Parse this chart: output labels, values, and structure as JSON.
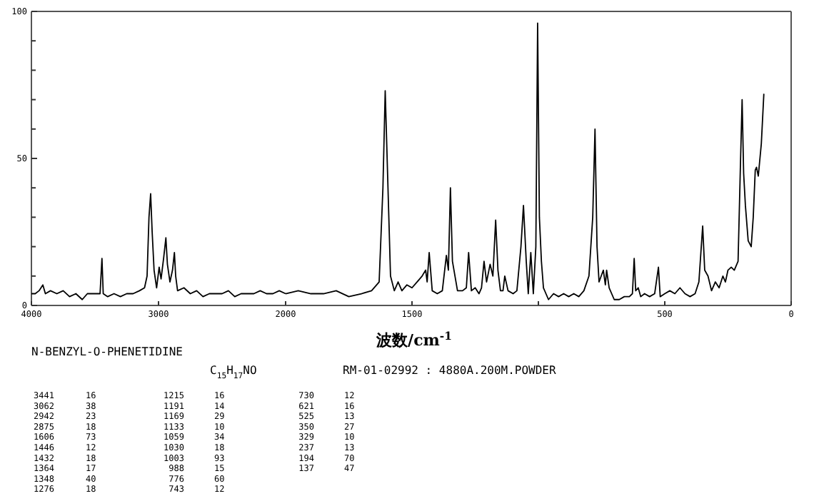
{
  "chart_data": [
    {
      "type": "line",
      "title": "N-BENZYL-O-PHENETIDINE",
      "xlabel": "波数/cm$^{-1}$",
      "annotations": [
        "C$_{15}$H$_{17}$NO",
        "RM-01-02992 : 4880A.200M.POWDER",
        "3441 16",
        "3062 38",
        "2942 23",
        "2875 18",
        "1606 73",
        "1446 12",
        "1432 18",
        "1364 17",
        "1348 40",
        "1276 18",
        "1215 16",
        "1191 14",
        "1169 29",
        "1133 10",
        "1059 34",
        "1030 18",
        "1003 93",
        "988 15",
        "776 60",
        "743 12",
        "730 12",
        "621 16",
        "525 13",
        "350 27",
        "329 10",
        "237 13",
        "194 70",
        "137 47"
      ],
      "x": [
        4000,
        3970,
        3940,
        3910,
        3890,
        3850,
        3800,
        3750,
        3700,
        3650,
        3600,
        3560,
        3500,
        3460,
        3445,
        3435,
        3400,
        3350,
        3300,
        3250,
        3200,
        3150,
        3110,
        3090,
        3075,
        3062,
        3050,
        3035,
        3015,
        2995,
        2980,
        2960,
        2942,
        2930,
        2910,
        2890,
        2875,
        2865,
        2850,
        2800,
        2750,
        2700,
        2650,
        2600,
        2550,
        2500,
        2450,
        2400,
        2350,
        2300,
        2250,
        2200,
        2150,
        2100,
        2050,
        2000
      ],
      "series": [
        {
          "color": "#000000",
          "values": [
            4,
            4,
            5,
            7,
            4,
            5,
            4,
            5,
            3,
            4,
            2,
            4,
            4,
            4,
            16,
            4,
            3,
            4,
            3,
            4,
            4,
            5,
            6,
            10,
            30,
            38,
            25,
            12,
            6,
            13,
            9,
            16,
            23,
            14,
            8,
            12,
            18,
            10,
            5,
            6,
            4,
            5,
            3,
            4,
            4,
            4,
            5,
            3,
            4,
            4,
            4,
            5,
            4,
            4,
            5,
            4
          ]
        }
      ],
      "xlim": [
        4000,
        2000
      ],
      "xticks": [
        4000,
        3000,
        2000
      ],
      "ylim": [
        0,
        100
      ],
      "yticks": [
        0,
        {
          "value": 10,
          "label": null
        },
        {
          "value": 20,
          "label": null
        },
        {
          "value": 30,
          "label": null
        },
        {
          "value": 40,
          "label": null
        },
        50,
        {
          "value": 60,
          "label": null
        },
        {
          "value": 70,
          "label": null
        },
        {
          "value": 80,
          "label": null
        },
        {
          "value": 90,
          "label": null
        },
        100
      ],
      "marker": "none",
      "line_style": "solid"
    },
    {
      "type": "line",
      "x": [
        2000,
        1950,
        1900,
        1850,
        1800,
        1750,
        1700,
        1660,
        1630,
        1615,
        1606,
        1595,
        1585,
        1570,
        1555,
        1540,
        1520,
        1500,
        1480,
        1460,
        1446,
        1440,
        1432,
        1420,
        1400,
        1380,
        1364,
        1356,
        1348,
        1340,
        1320,
        1300,
        1285,
        1276,
        1265,
        1250,
        1235,
        1225,
        1215,
        1205,
        1191,
        1180,
        1169,
        1160,
        1150,
        1140,
        1133,
        1120,
        1100,
        1085,
        1069,
        1059,
        1048,
        1040,
        1030,
        1020,
        1010,
        1003,
        996,
        988,
        980,
        960,
        940,
        920,
        900,
        880,
        860,
        840,
        820,
        800,
        785,
        776,
        768,
        760,
        743,
        735,
        730,
        720,
        700,
        680,
        660,
        640,
        628,
        621,
        615,
        605,
        595,
        580,
        560,
        540,
        525,
        518,
        500,
        480,
        460,
        440,
        420,
        400,
        380,
        365,
        350,
        342,
        329,
        315,
        300,
        285,
        270,
        260,
        250,
        237,
        225,
        210,
        200,
        194,
        188,
        181,
        170,
        158,
        150,
        142,
        137,
        130,
        118,
        108
      ],
      "series": [
        {
          "color": "#000000",
          "values": [
            4,
            5,
            4,
            4,
            5,
            3,
            4,
            5,
            8,
            40,
            73,
            40,
            10,
            5,
            8,
            5,
            7,
            6,
            8,
            10,
            12,
            8,
            18,
            5,
            4,
            5,
            17,
            12,
            40,
            15,
            5,
            5,
            6,
            18,
            5,
            6,
            4,
            6,
            15,
            8,
            14,
            10,
            29,
            12,
            5,
            5,
            10,
            5,
            4,
            5,
            20,
            34,
            15,
            4,
            18,
            4,
            20,
            96,
            30,
            15,
            6,
            2,
            4,
            3,
            4,
            3,
            4,
            3,
            5,
            10,
            30,
            60,
            20,
            8,
            12,
            7,
            12,
            6,
            2,
            2,
            3,
            3,
            4,
            16,
            5,
            6,
            3,
            4,
            3,
            4,
            13,
            3,
            4,
            5,
            4,
            6,
            4,
            3,
            4,
            8,
            27,
            12,
            10,
            5,
            8,
            6,
            10,
            8,
            12,
            13,
            12,
            15,
            50,
            70,
            45,
            34,
            22,
            20,
            30,
            46,
            47,
            44,
            55,
            72
          ]
        }
      ],
      "xlim": [
        2000,
        0
      ],
      "xticks": [
        1500,
        {
          "value": 1000,
          "label": null
        },
        500,
        0
      ],
      "ylim": [
        0,
        100
      ],
      "tick_labels": "x",
      "marker": "none",
      "line_style": "solid"
    }
  ]
}
